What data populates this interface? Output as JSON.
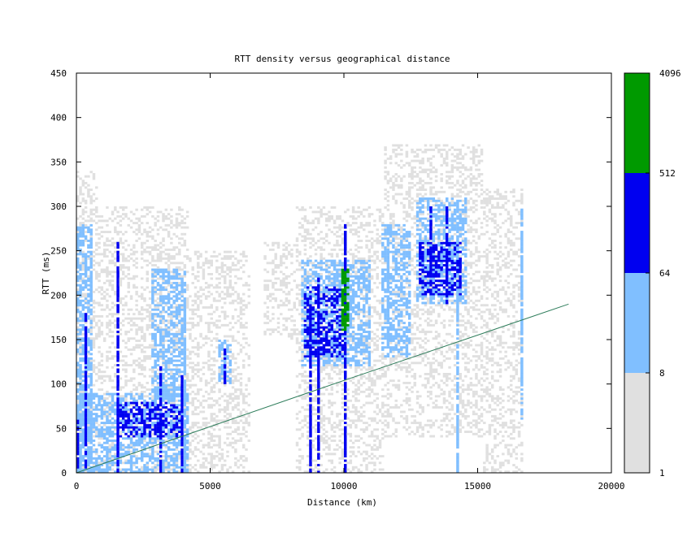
{
  "chart_data": {
    "type": "heatmap",
    "title": "RTT density versus geographical distance",
    "xlabel": "Distance (km)",
    "ylabel": "RTT (ms)",
    "xlim": [
      0,
      20000
    ],
    "ylim": [
      0,
      450
    ],
    "x_ticks": [
      "0",
      "5000",
      "10000",
      "15000",
      "20000"
    ],
    "y_ticks": [
      "0",
      "50",
      "100",
      "150",
      "200",
      "250",
      "300",
      "350",
      "400",
      "450"
    ],
    "cell_size_km": 100,
    "cell_size_ms": 2.5,
    "colorbar": {
      "scale": "log2",
      "ticks": [
        "1",
        "8",
        "64",
        "512",
        "4096"
      ],
      "bands": [
        {
          "from": 1,
          "to": 8,
          "color": "#e0e0e0"
        },
        {
          "from": 8,
          "to": 64,
          "color": "#80bfff"
        },
        {
          "from": 64,
          "to": 512,
          "color": "#0000f0"
        },
        {
          "from": 512,
          "to": 4096,
          "color": "#009a00"
        }
      ]
    },
    "density_regions": [
      {
        "level": 1,
        "x": [
          0,
          800
        ],
        "y": [
          0,
          340
        ]
      },
      {
        "level": 1,
        "x": [
          800,
          4200
        ],
        "y": [
          0,
          300
        ]
      },
      {
        "level": 1,
        "x": [
          4200,
          6500
        ],
        "y": [
          0,
          250
        ]
      },
      {
        "level": 1,
        "x": [
          7000,
          8200
        ],
        "y": [
          150,
          260
        ]
      },
      {
        "level": 1,
        "x": [
          8200,
          11500
        ],
        "y": [
          0,
          300
        ]
      },
      {
        "level": 1,
        "x": [
          11500,
          15200
        ],
        "y": [
          40,
          370
        ]
      },
      {
        "level": 1,
        "x": [
          15200,
          16700
        ],
        "y": [
          0,
          320
        ]
      },
      {
        "level": 2,
        "x": [
          0,
          4200
        ],
        "y": [
          0,
          90
        ]
      },
      {
        "level": 2,
        "x": [
          0,
          500
        ],
        "y": [
          0,
          280
        ]
      },
      {
        "level": 2,
        "x": [
          2800,
          4100
        ],
        "y": [
          80,
          230
        ]
      },
      {
        "level": 2,
        "x": [
          5300,
          5800
        ],
        "y": [
          100,
          150
        ]
      },
      {
        "level": 2,
        "x": [
          8400,
          11000
        ],
        "y": [
          120,
          240
        ]
      },
      {
        "level": 2,
        "x": [
          11400,
          12500
        ],
        "y": [
          130,
          280
        ]
      },
      {
        "level": 2,
        "x": [
          12700,
          14600
        ],
        "y": [
          190,
          310
        ]
      },
      {
        "level": 3,
        "x": [
          1500,
          4000
        ],
        "y": [
          40,
          80
        ]
      },
      {
        "level": 3,
        "x": [
          8500,
          10100
        ],
        "y": [
          130,
          210
        ]
      },
      {
        "level": 3,
        "x": [
          12800,
          14400
        ],
        "y": [
          200,
          260
        ]
      },
      {
        "level": 4,
        "x": [
          9900,
          10200
        ],
        "y": [
          160,
          230
        ]
      }
    ],
    "vertical_streaks": [
      {
        "x": 0,
        "y": [
          0,
          60
        ],
        "level": 3
      },
      {
        "x": 300,
        "y": [
          0,
          180
        ],
        "level": 3
      },
      {
        "x": 500,
        "y": [
          0,
          280
        ],
        "level": 2
      },
      {
        "x": 1500,
        "y": [
          0,
          260
        ],
        "level": 3
      },
      {
        "x": 3100,
        "y": [
          0,
          120
        ],
        "level": 3
      },
      {
        "x": 3900,
        "y": [
          0,
          110
        ],
        "level": 3
      },
      {
        "x": 4000,
        "y": [
          0,
          200
        ],
        "level": 2
      },
      {
        "x": 5500,
        "y": [
          100,
          140
        ],
        "level": 3
      },
      {
        "x": 8700,
        "y": [
          0,
          190
        ],
        "level": 3
      },
      {
        "x": 9000,
        "y": [
          0,
          220
        ],
        "level": 3
      },
      {
        "x": 10050,
        "y": [
          0,
          280
        ],
        "level": 3
      },
      {
        "x": 11600,
        "y": [
          130,
          280
        ],
        "level": 2
      },
      {
        "x": 13200,
        "y": [
          200,
          300
        ],
        "level": 3
      },
      {
        "x": 13800,
        "y": [
          190,
          300
        ],
        "level": 3
      },
      {
        "x": 14200,
        "y": [
          0,
          290
        ],
        "level": 2
      },
      {
        "x": 16600,
        "y": [
          60,
          300
        ],
        "level": 2
      }
    ],
    "reference_line": {
      "color": "#2e7d5b",
      "points": [
        [
          0,
          0
        ],
        [
          5000,
          52
        ],
        [
          10000,
          104
        ],
        [
          15000,
          155
        ],
        [
          18400,
          190
        ]
      ]
    }
  }
}
